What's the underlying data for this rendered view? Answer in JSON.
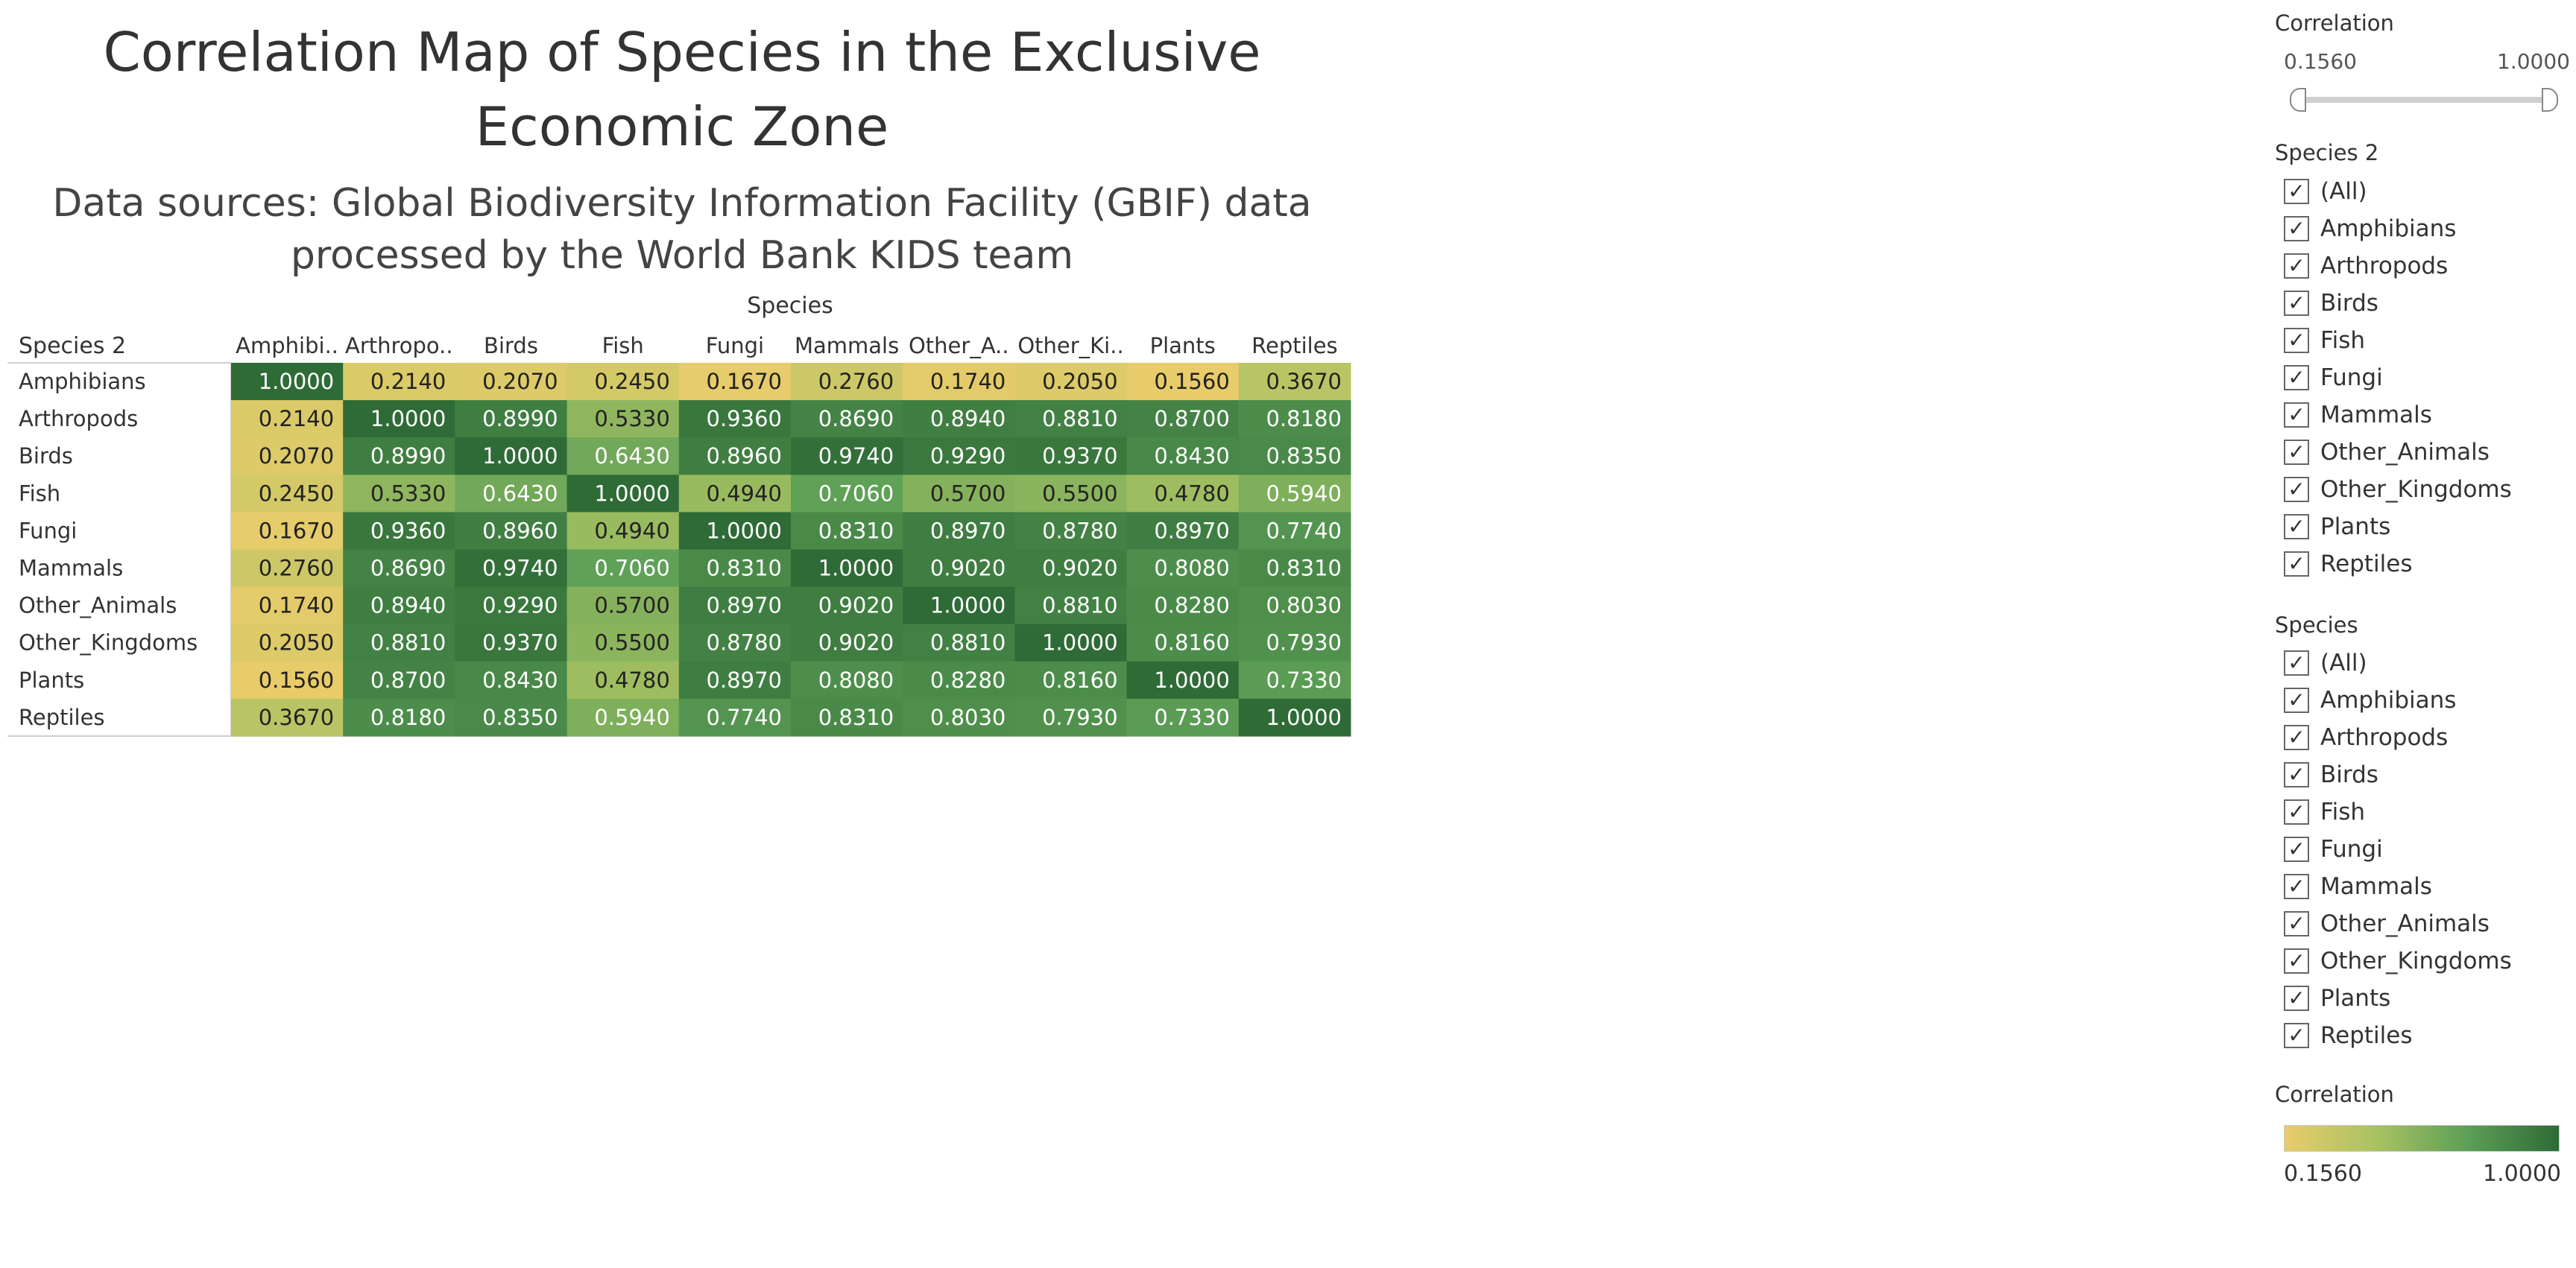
{
  "header": {
    "title": "Correlation Map of Species in the Exclusive\nEconomic Zone",
    "subtitle": "Data sources: Global Biodiversity Information Facility (GBIF) data\nprocessed by the World Bank KIDS team"
  },
  "chart_data": {
    "type": "heatmap",
    "column_axis_label": "Species",
    "row_axis_label": "Species 2",
    "columns": [
      "Amphibians",
      "Arthropods",
      "Birds",
      "Fish",
      "Fungi",
      "Mammals",
      "Other_Animals",
      "Other_Kingdoms",
      "Plants",
      "Reptiles"
    ],
    "column_labels": [
      "Amphibi..",
      "Arthropo..",
      "Birds",
      "Fish",
      "Fungi",
      "Mammals",
      "Other_A..",
      "Other_Ki..",
      "Plants",
      "Reptiles"
    ],
    "rows": [
      "Amphibians",
      "Arthropods",
      "Birds",
      "Fish",
      "Fungi",
      "Mammals",
      "Other_Animals",
      "Other_Kingdoms",
      "Plants",
      "Reptiles"
    ],
    "values": [
      [
        1.0,
        0.214,
        0.207,
        0.245,
        0.167,
        0.276,
        0.174,
        0.205,
        0.156,
        0.367
      ],
      [
        0.214,
        1.0,
        0.899,
        0.533,
        0.936,
        0.869,
        0.894,
        0.881,
        0.87,
        0.818
      ],
      [
        0.207,
        0.899,
        1.0,
        0.643,
        0.896,
        0.974,
        0.929,
        0.937,
        0.843,
        0.835
      ],
      [
        0.245,
        0.533,
        0.643,
        1.0,
        0.494,
        0.706,
        0.57,
        0.55,
        0.478,
        0.594
      ],
      [
        0.167,
        0.936,
        0.896,
        0.494,
        1.0,
        0.831,
        0.897,
        0.878,
        0.897,
        0.774
      ],
      [
        0.276,
        0.869,
        0.974,
        0.706,
        0.831,
        1.0,
        0.902,
        0.902,
        0.808,
        0.831
      ],
      [
        0.174,
        0.894,
        0.929,
        0.57,
        0.897,
        0.902,
        1.0,
        0.881,
        0.828,
        0.803
      ],
      [
        0.205,
        0.881,
        0.937,
        0.55,
        0.878,
        0.902,
        0.881,
        1.0,
        0.816,
        0.793
      ],
      [
        0.156,
        0.87,
        0.843,
        0.478,
        0.897,
        0.808,
        0.828,
        0.816,
        1.0,
        0.733
      ],
      [
        0.367,
        0.818,
        0.835,
        0.594,
        0.774,
        0.831,
        0.803,
        0.793,
        0.733,
        1.0
      ]
    ],
    "value_range": [
      0.156,
      1.0
    ],
    "color_scale": [
      "#e8cc6a",
      "#a9c262",
      "#5c9f56",
      "#2f6b36"
    ]
  },
  "filters": {
    "correlation_slider": {
      "label": "Correlation",
      "min_label": "0.1560",
      "max_label": "1.0000",
      "min": 0.156,
      "max": 1.0
    },
    "species2": {
      "label": "Species 2",
      "items": [
        "(All)",
        "Amphibians",
        "Arthropods",
        "Birds",
        "Fish",
        "Fungi",
        "Mammals",
        "Other_Animals",
        "Other_Kingdoms",
        "Plants",
        "Reptiles"
      ]
    },
    "species": {
      "label": "Species",
      "items": [
        "(All)",
        "Amphibians",
        "Arthropods",
        "Birds",
        "Fish",
        "Fungi",
        "Mammals",
        "Other_Animals",
        "Other_Kingdoms",
        "Plants",
        "Reptiles"
      ]
    },
    "check_glyph": "✓"
  },
  "color_legend": {
    "label": "Correlation",
    "min_label": "0.1560",
    "max_label": "1.0000"
  }
}
